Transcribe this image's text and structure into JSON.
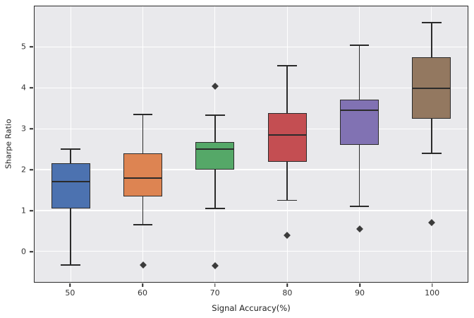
{
  "colors": {
    "plot_background": "#e9e9ec",
    "grid": "#ffffff",
    "line": "#2b2b2b",
    "outlier": "#3b3b3b"
  },
  "chart_data": {
    "type": "box",
    "title": "",
    "xlabel": "Signal Accuracy(%)",
    "ylabel": "Sharpe Ratio",
    "categories": [
      "50",
      "60",
      "70",
      "80",
      "90",
      "100"
    ],
    "ylim": [
      -0.75,
      6.0
    ],
    "yticks": [
      0,
      1,
      2,
      3,
      4,
      5
    ],
    "grid": true,
    "legend": "none",
    "series": [
      {
        "category": "50",
        "color": "#4C72B0",
        "whisker_low": -0.33,
        "q1": 1.05,
        "median": 1.7,
        "q3": 2.15,
        "whisker_high": 2.5,
        "outliers": []
      },
      {
        "category": "60",
        "color": "#DD8452",
        "whisker_low": 0.65,
        "q1": 1.35,
        "median": 1.8,
        "q3": 2.4,
        "whisker_high": 3.35,
        "outliers": [
          -0.33
        ]
      },
      {
        "category": "70",
        "color": "#55A868",
        "whisker_low": 1.05,
        "q1": 2.0,
        "median": 2.5,
        "q3": 2.68,
        "whisker_high": 3.33,
        "outliers": [
          -0.35,
          4.05
        ]
      },
      {
        "category": "80",
        "color": "#C44E52",
        "whisker_low": 1.25,
        "q1": 2.2,
        "median": 2.85,
        "q3": 3.38,
        "whisker_high": 4.55,
        "outliers": [
          0.4
        ]
      },
      {
        "category": "90",
        "color": "#8172B3",
        "whisker_low": 1.1,
        "q1": 2.6,
        "median": 3.45,
        "q3": 3.72,
        "whisker_high": 5.05,
        "outliers": [
          0.55
        ]
      },
      {
        "category": "100",
        "color": "#937860",
        "whisker_low": 2.4,
        "q1": 3.25,
        "median": 4.0,
        "q3": 4.75,
        "whisker_high": 5.6,
        "outliers": [
          0.7
        ]
      }
    ]
  }
}
